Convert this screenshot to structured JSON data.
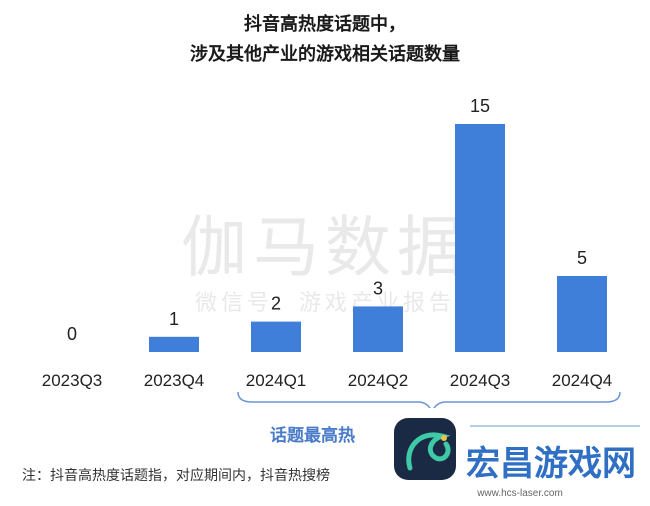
{
  "chart_data": {
    "type": "bar",
    "title": "抖音高热度话题中，",
    "subtitle": "涉及其他产业的游戏相关话题数量",
    "categories": [
      "2023Q3",
      "2023Q4",
      "2024Q1",
      "2024Q2",
      "2024Q3",
      "2024Q4"
    ],
    "values": [
      0,
      1,
      2,
      3,
      15,
      5
    ],
    "ylim": [
      0,
      15
    ],
    "grid": false,
    "legend": "none",
    "bar_color": "#3f7fd9",
    "xlabel": "",
    "ylabel": ""
  },
  "watermark": {
    "main": "伽马数据",
    "sub": "微信号：游戏产业报告"
  },
  "brace_label": "话题最高热",
  "footnote": "注：抖音高热度话题指，对应期间内，抖音热搜榜",
  "overlay": {
    "brand": "宏昌游戏网",
    "url": "www.hcs-laser.com",
    "logo_icon": "dragon-logo-icon"
  }
}
